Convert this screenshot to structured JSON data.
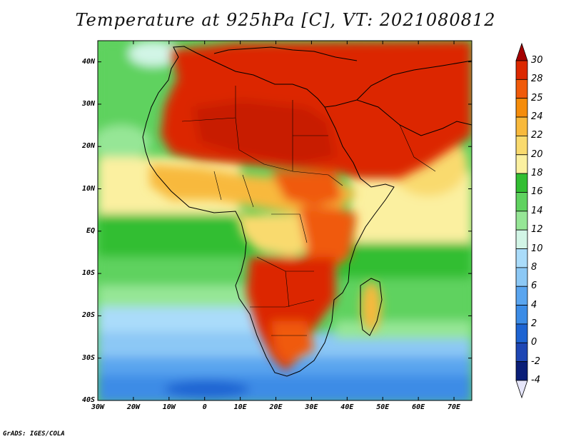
{
  "title": "Temperature at 925hPa [C], VT: 2021080812",
  "credit": "GrADS: IGES/COLA",
  "axes": {
    "lat_labels": [
      "40N",
      "30N",
      "20N",
      "10N",
      "EQ",
      "10S",
      "20S",
      "30S",
      "40S"
    ],
    "lat_values": [
      40,
      30,
      20,
      10,
      0,
      -10,
      -20,
      -30,
      -40
    ],
    "lon_labels": [
      "30W",
      "20W",
      "10W",
      "0",
      "10E",
      "20E",
      "30E",
      "40E",
      "50E",
      "60E",
      "70E"
    ],
    "lon_values": [
      -30,
      -20,
      -10,
      0,
      10,
      20,
      30,
      40,
      50,
      60,
      70
    ],
    "lon_range": [
      -30,
      75
    ],
    "lat_range": [
      -40,
      45
    ]
  },
  "colorbar": {
    "labels": [
      "30",
      "28",
      "25",
      "24",
      "22",
      "20",
      "18",
      "16",
      "14",
      "12",
      "10",
      "8",
      "6",
      "4",
      "2",
      "0",
      "-2",
      "-4"
    ],
    "colors": [
      "#a50000",
      "#dc2800",
      "#f05a0a",
      "#f58c0a",
      "#f8b93c",
      "#f9da6e",
      "#fbf0a0",
      "#32be32",
      "#5fd25f",
      "#96e696",
      "#d2f5e6",
      "#aadcfa",
      "#8cc8f5",
      "#5aa5ef",
      "#3c8ce6",
      "#1e64d2",
      "#1e46b4",
      "#0a1e78",
      "#e6e6fa"
    ],
    "top_color": "#a50000",
    "bottom_color": "#e6e6fa"
  }
}
